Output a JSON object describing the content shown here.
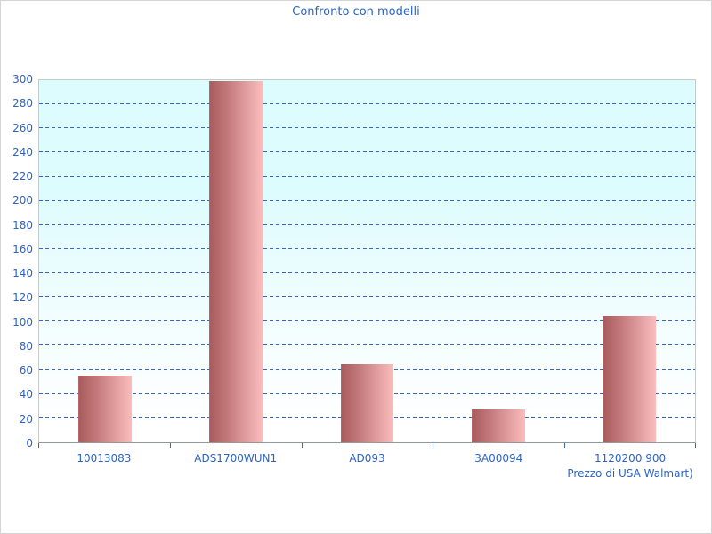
{
  "chart_data": {
    "type": "bar",
    "title": "Confronto con modelli",
    "categories": [
      "10013083",
      "ADS1700WUN1",
      "AD093",
      "3A00094",
      "1120200 900\nPrezzo di USA Walmart)"
    ],
    "values": [
      55,
      299,
      65,
      27,
      105
    ],
    "xlabel": "",
    "ylabel": "",
    "ylim": [
      0,
      300
    ],
    "ytick_step": 20,
    "grid": "horizontal-dashed",
    "legend": "none",
    "colors": {
      "title_text": "#2b63c9",
      "tick_label_text": "#2b63c9",
      "gridline": "#3a64c8",
      "bar_gradient_dark": "#a85a5c",
      "bar_gradient_light": "#fbbdbd",
      "plot_bg_top": "#ddfcfd",
      "plot_bg_bottom": "#ffffff",
      "plot_border": "#c6cccc",
      "axis_line": "#8f9a9a"
    }
  }
}
